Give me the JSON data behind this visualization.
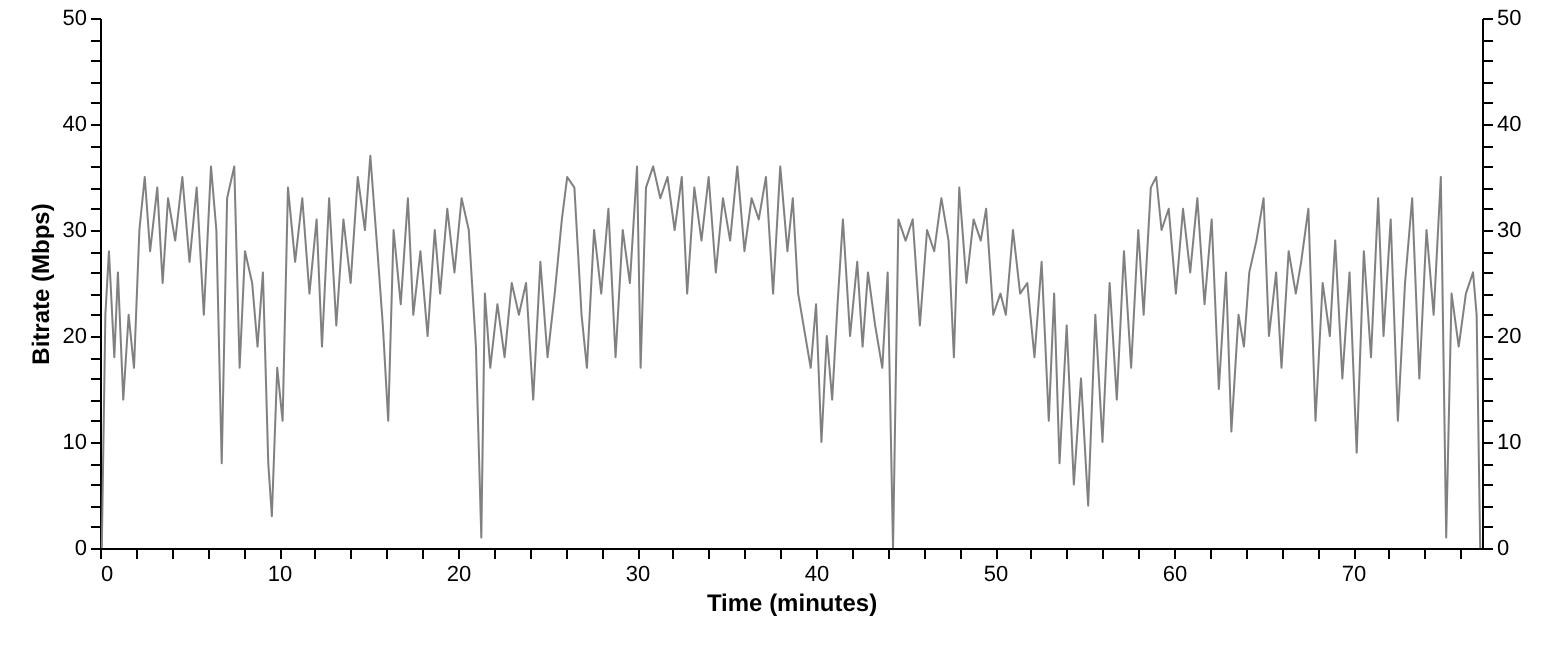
{
  "chart_data": {
    "type": "line",
    "xlabel": "Time (minutes)",
    "ylabel": "Bitrate (Mbps)",
    "x": [
      0.1,
      0.3,
      0.5,
      0.8,
      1.0,
      1.3,
      1.6,
      1.9,
      2.2,
      2.5,
      2.8,
      3.2,
      3.5,
      3.8,
      4.2,
      4.6,
      5.0,
      5.4,
      5.8,
      6.2,
      6.5,
      6.8,
      7.1,
      7.5,
      7.8,
      8.1,
      8.5,
      8.8,
      9.1,
      9.4,
      9.6,
      9.9,
      10.2,
      10.5,
      10.9,
      11.3,
      11.7,
      12.1,
      12.4,
      12.8,
      13.2,
      13.6,
      14.0,
      14.4,
      14.8,
      15.1,
      15.5,
      15.8,
      16.1,
      16.4,
      16.8,
      17.2,
      17.5,
      17.9,
      18.3,
      18.7,
      19.0,
      19.4,
      19.8,
      20.2,
      20.6,
      21.0,
      21.3,
      21.5,
      21.8,
      22.2,
      22.6,
      23.0,
      23.4,
      23.8,
      24.2,
      24.6,
      25.0,
      25.4,
      25.8,
      26.1,
      26.5,
      26.9,
      27.2,
      27.6,
      28.0,
      28.4,
      28.8,
      29.2,
      29.6,
      30.0,
      30.2,
      30.5,
      30.9,
      31.3,
      31.7,
      32.1,
      32.5,
      32.8,
      33.2,
      33.6,
      34.0,
      34.4,
      34.8,
      35.2,
      35.6,
      36.0,
      36.4,
      36.8,
      37.2,
      37.6,
      38.0,
      38.4,
      38.7,
      39.0,
      39.3,
      39.7,
      40.0,
      40.3,
      40.6,
      40.9,
      41.2,
      41.5,
      41.9,
      42.3,
      42.6,
      42.9,
      43.3,
      43.7,
      44.0,
      44.3,
      44.6,
      45.0,
      45.4,
      45.8,
      46.2,
      46.6,
      47.0,
      47.4,
      47.7,
      48.0,
      48.4,
      48.8,
      49.2,
      49.5,
      49.9,
      50.3,
      50.6,
      51.0,
      51.4,
      51.8,
      52.2,
      52.6,
      53.0,
      53.3,
      53.6,
      54.0,
      54.4,
      54.8,
      55.2,
      55.6,
      56.0,
      56.4,
      56.8,
      57.2,
      57.6,
      58.0,
      58.3,
      58.7,
      59.0,
      59.3,
      59.7,
      60.1,
      60.5,
      60.9,
      61.3,
      61.7,
      62.1,
      62.5,
      62.9,
      63.2,
      63.6,
      63.9,
      64.2,
      64.6,
      65.0,
      65.3,
      65.7,
      66.0,
      66.4,
      66.8,
      67.1,
      67.5,
      67.9,
      68.3,
      68.7,
      69.0,
      69.4,
      69.8,
      70.2,
      70.6,
      71.0,
      71.4,
      71.7,
      72.1,
      72.5,
      72.9,
      73.3,
      73.7,
      74.1,
      74.5,
      74.9,
      75.2,
      75.5,
      75.9,
      76.3,
      76.7,
      76.9,
      77.1
    ],
    "series": [
      {
        "color": "#808080",
        "values": [
          0,
          22,
          28,
          18,
          26,
          14,
          22,
          17,
          30,
          35,
          28,
          34,
          25,
          33,
          29,
          35,
          27,
          34,
          22,
          36,
          30,
          8,
          33,
          36,
          17,
          28,
          25,
          19,
          26,
          8,
          3,
          17,
          12,
          34,
          27,
          33,
          24,
          31,
          19,
          33,
          21,
          31,
          25,
          35,
          30,
          37,
          28,
          21,
          12,
          30,
          23,
          33,
          22,
          28,
          20,
          30,
          24,
          32,
          26,
          33,
          30,
          19,
          1,
          24,
          17,
          23,
          18,
          25,
          22,
          25,
          14,
          27,
          18,
          24,
          31,
          35,
          34,
          22,
          17,
          30,
          24,
          32,
          18,
          30,
          25,
          36,
          17,
          34,
          36,
          33,
          35,
          30,
          35,
          24,
          34,
          29,
          35,
          26,
          33,
          29,
          36,
          28,
          33,
          31,
          35,
          24,
          36,
          28,
          33,
          24,
          21,
          17,
          23,
          10,
          20,
          14,
          23,
          31,
          20,
          27,
          19,
          26,
          21,
          17,
          26,
          0,
          31,
          29,
          31,
          21,
          30,
          28,
          33,
          29,
          18,
          34,
          25,
          31,
          29,
          32,
          22,
          24,
          22,
          30,
          24,
          25,
          18,
          27,
          12,
          24,
          8,
          21,
          6,
          16,
          4,
          22,
          10,
          25,
          14,
          28,
          17,
          30,
          22,
          34,
          35,
          30,
          32,
          24,
          32,
          26,
          33,
          23,
          31,
          15,
          26,
          11,
          22,
          19,
          26,
          29,
          33,
          20,
          26,
          17,
          28,
          24,
          27,
          32,
          12,
          25,
          20,
          29,
          16,
          26,
          9,
          28,
          18,
          33,
          20,
          31,
          12,
          25,
          33,
          16,
          30,
          22,
          35,
          1,
          24,
          19,
          24,
          26,
          22,
          0
        ]
      }
    ],
    "xlim": [
      0,
      77.2
    ],
    "xticks": [
      0,
      {
        "value": 2,
        "label": null
      },
      {
        "value": 4,
        "label": null
      },
      {
        "value": 6,
        "label": null
      },
      {
        "value": 8,
        "label": null
      },
      10,
      {
        "value": 12,
        "label": null
      },
      {
        "value": 14,
        "label": null
      },
      {
        "value": 16,
        "label": null
      },
      {
        "value": 18,
        "label": null
      },
      20,
      {
        "value": 22,
        "label": null
      },
      {
        "value": 24,
        "label": null
      },
      {
        "value": 26,
        "label": null
      },
      {
        "value": 28,
        "label": null
      },
      30,
      {
        "value": 32,
        "label": null
      },
      {
        "value": 34,
        "label": null
      },
      {
        "value": 36,
        "label": null
      },
      {
        "value": 38,
        "label": null
      },
      40,
      {
        "value": 42,
        "label": null
      },
      {
        "value": 44,
        "label": null
      },
      {
        "value": 46,
        "label": null
      },
      {
        "value": 48,
        "label": null
      },
      50,
      {
        "value": 52,
        "label": null
      },
      {
        "value": 54,
        "label": null
      },
      {
        "value": 56,
        "label": null
      },
      {
        "value": 58,
        "label": null
      },
      60,
      {
        "value": 62,
        "label": null
      },
      {
        "value": 64,
        "label": null
      },
      {
        "value": 66,
        "label": null
      },
      {
        "value": 68,
        "label": null
      },
      70,
      {
        "value": 72,
        "label": null
      },
      {
        "value": 74,
        "label": null
      },
      {
        "value": 76,
        "label": null
      }
    ],
    "ylim": [
      0,
      50
    ],
    "yticks": [
      0,
      {
        "value": 2,
        "label": null
      },
      {
        "value": 4,
        "label": null
      },
      {
        "value": 6,
        "label": null
      },
      {
        "value": 8,
        "label": null
      },
      10,
      {
        "value": 12,
        "label": null
      },
      {
        "value": 14,
        "label": null
      },
      {
        "value": 16,
        "label": null
      },
      {
        "value": 18,
        "label": null
      },
      20,
      {
        "value": 22,
        "label": null
      },
      {
        "value": 24,
        "label": null
      },
      {
        "value": 26,
        "label": null
      },
      {
        "value": 28,
        "label": null
      },
      30,
      {
        "value": 32,
        "label": null
      },
      {
        "value": 34,
        "label": null
      },
      {
        "value": 36,
        "label": null
      },
      {
        "value": 38,
        "label": null
      },
      40,
      {
        "value": 42,
        "label": null
      },
      {
        "value": 44,
        "label": null
      },
      {
        "value": 46,
        "label": null
      },
      {
        "value": 48,
        "label": null
      },
      50
    ],
    "y2lim": [
      0,
      50
    ],
    "y2ticks": [
      0,
      {
        "value": 2,
        "label": null
      },
      {
        "value": 4,
        "label": null
      },
      {
        "value": 6,
        "label": null
      },
      {
        "value": 8,
        "label": null
      },
      10,
      {
        "value": 12,
        "label": null
      },
      {
        "value": 14,
        "label": null
      },
      {
        "value": 16,
        "label": null
      },
      {
        "value": 18,
        "label": null
      },
      20,
      {
        "value": 22,
        "label": null
      },
      {
        "value": 24,
        "label": null
      },
      {
        "value": 26,
        "label": null
      },
      {
        "value": 28,
        "label": null
      },
      30,
      {
        "value": 32,
        "label": null
      },
      {
        "value": 34,
        "label": null
      },
      {
        "value": 36,
        "label": null
      },
      {
        "value": 38,
        "label": null
      },
      40,
      {
        "value": 42,
        "label": null
      },
      {
        "value": 44,
        "label": null
      },
      {
        "value": 46,
        "label": null
      },
      {
        "value": 48,
        "label": null
      },
      50
    ],
    "grid": false,
    "marker": "none",
    "line_style": "solid"
  }
}
